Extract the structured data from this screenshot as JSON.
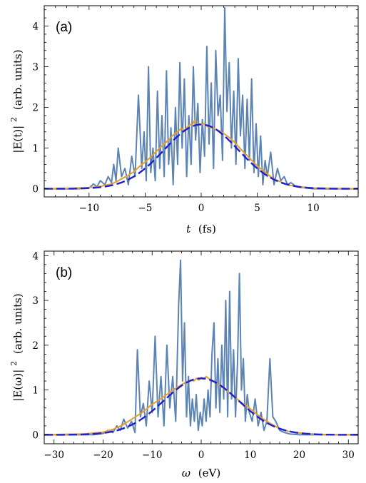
{
  "chart_data": [
    {
      "type": "line",
      "panel_label": "(a)",
      "xlabel": "t (fs)",
      "xlabel_var": "t",
      "xlabel_unit": "(fs)",
      "ylabel": "|E(t)|² (arb. units)",
      "ylabel_main": "|E(t)|",
      "ylabel_exp": "2",
      "ylabel_unit": "(arb. units)",
      "xlim": [
        -14,
        14
      ],
      "ylim": [
        -0.2,
        4.5
      ],
      "xticks": [
        -10,
        -5,
        0,
        5,
        10
      ],
      "xtick_labels": [
        "−10",
        "−5",
        "0",
        "5",
        "10"
      ],
      "yticks": [
        0,
        1,
        2,
        3,
        4
      ],
      "ytick_labels": [
        "0",
        "1",
        "2",
        "3",
        "4"
      ],
      "grid": false,
      "series": [
        {
          "color": "#5b84b5",
          "style": "solid",
          "x": [
            -14,
            -11,
            -10,
            -9.6,
            -9.3,
            -9,
            -8.6,
            -8.3,
            -8,
            -7.8,
            -7.6,
            -7.4,
            -7.1,
            -6.8,
            -6.5,
            -6.2,
            -5.9,
            -5.6,
            -5.3,
            -5.1,
            -4.9,
            -4.7,
            -4.5,
            -4.3,
            -4.1,
            -3.9,
            -3.7,
            -3.5,
            -3.3,
            -3.1,
            -2.9,
            -2.7,
            -2.5,
            -2.3,
            -2.1,
            -1.9,
            -1.7,
            -1.5,
            -1.3,
            -1.1,
            -0.9,
            -0.7,
            -0.5,
            -0.3,
            -0.1,
            0.1,
            0.3,
            0.5,
            0.7,
            0.9,
            1.1,
            1.3,
            1.5,
            1.7,
            1.9,
            2.1,
            2.3,
            2.5,
            2.7,
            2.9,
            3.1,
            3.3,
            3.5,
            3.7,
            3.9,
            4.1,
            4.3,
            4.5,
            4.7,
            4.9,
            5.1,
            5.3,
            5.5,
            5.7,
            5.9,
            6.2,
            6.5,
            6.8,
            7.1,
            7.4,
            7.7,
            8.0,
            8.5,
            9,
            10,
            14
          ],
          "y": [
            0,
            0,
            0.02,
            0.12,
            0.05,
            0.2,
            0.1,
            0.3,
            0.15,
            0.6,
            0.2,
            1.0,
            0.3,
            0.5,
            0.1,
            0.8,
            0.3,
            2.3,
            0.5,
            1.4,
            0.2,
            3.0,
            0.4,
            1.0,
            0.2,
            2.4,
            0.5,
            1.8,
            0.3,
            2.9,
            0.6,
            1.5,
            0.1,
            2.0,
            0.6,
            3.1,
            1.0,
            2.7,
            0.3,
            1.8,
            0.6,
            3.0,
            1.2,
            2.1,
            0.4,
            1.7,
            0.8,
            3.5,
            1.1,
            2.6,
            0.5,
            3.4,
            1.8,
            2.3,
            0.7,
            4.45,
            1.9,
            3.1,
            1.0,
            2.4,
            0.6,
            3.2,
            1.3,
            2.3,
            0.5,
            2.2,
            0.7,
            2.7,
            0.4,
            1.6,
            0.3,
            1.3,
            0.1,
            0.7,
            0.3,
            0.9,
            0.1,
            0.5,
            0.2,
            0.3,
            0.1,
            0.15,
            0.05,
            0.03,
            0,
            0
          ]
        },
        {
          "color": "#e69f2c",
          "style": "solid",
          "x": [
            -14,
            -12,
            -10,
            -9,
            -8,
            -7.5,
            -7,
            -6.5,
            -6,
            -5.5,
            -5,
            -4.5,
            -4,
            -3.5,
            -3,
            -2.5,
            -2,
            -1.8,
            -1.5,
            -1.2,
            -1,
            -0.8,
            -0.6,
            -0.4,
            -0.2,
            0,
            0.3,
            0.6,
            1,
            1.5,
            2,
            2.5,
            3,
            3.5,
            4,
            4.5,
            5,
            5.5,
            6,
            6.5,
            7,
            7.5,
            8,
            9,
            10,
            12,
            14
          ],
          "y": [
            0,
            0.01,
            0.03,
            0.06,
            0.12,
            0.18,
            0.26,
            0.33,
            0.42,
            0.55,
            0.66,
            0.78,
            0.92,
            1.05,
            1.18,
            1.32,
            1.42,
            1.48,
            1.44,
            1.52,
            1.58,
            1.56,
            1.68,
            1.55,
            1.6,
            1.58,
            1.6,
            1.52,
            1.5,
            1.44,
            1.36,
            1.26,
            1.14,
            0.98,
            0.84,
            0.7,
            0.56,
            0.45,
            0.34,
            0.24,
            0.18,
            0.12,
            0.08,
            0.04,
            0.02,
            0.01,
            0
          ]
        },
        {
          "color": "#1f1fd4",
          "style": "dashed",
          "gaussian": {
            "amplitude": 1.58,
            "center": 0,
            "sigma": 3.3
          }
        }
      ]
    },
    {
      "type": "line",
      "panel_label": "(b)",
      "xlabel": "ω (eV)",
      "xlabel_var": "ω",
      "xlabel_unit": "(eV)",
      "ylabel": "|E(ω)|² (arb. units)",
      "ylabel_main": "|E(ω)|",
      "ylabel_exp": "2",
      "ylabel_unit": "(arb. units)",
      "xlim": [
        -32,
        32
      ],
      "ylim": [
        -0.2,
        4.1
      ],
      "xticks": [
        -30,
        -20,
        -10,
        0,
        10,
        20,
        30
      ],
      "xtick_labels": [
        "−30",
        "−20",
        "−10",
        "0",
        "10",
        "20",
        "30"
      ],
      "yticks": [
        0,
        1,
        2,
        3,
        4
      ],
      "ytick_labels": [
        "0",
        "1",
        "2",
        "3",
        "4"
      ],
      "grid": false,
      "series": [
        {
          "color": "#5b84b5",
          "style": "solid",
          "x": [
            -32,
            -22,
            -20,
            -19,
            -18,
            -17.2,
            -16.5,
            -15.8,
            -15,
            -14.2,
            -13.5,
            -13,
            -12.4,
            -11.8,
            -11.2,
            -10.6,
            -10,
            -9.4,
            -8.8,
            -8.2,
            -7.6,
            -7,
            -6.4,
            -5.8,
            -5.2,
            -4.6,
            -4.2,
            -3.8,
            -3.4,
            -3,
            -2.6,
            -2.2,
            -1.8,
            -1.4,
            -1,
            -0.6,
            -0.2,
            0.2,
            0.6,
            1,
            1.4,
            1.8,
            2.2,
            2.6,
            3,
            3.4,
            3.8,
            4.2,
            4.6,
            5,
            5.4,
            5.8,
            6.2,
            6.6,
            7,
            7.4,
            7.8,
            8.2,
            8.6,
            9,
            9.4,
            9.8,
            10.4,
            11,
            11.6,
            12.2,
            12.8,
            13.4,
            14,
            14.6,
            15.2,
            16,
            17,
            18,
            20,
            32
          ],
          "y": [
            0,
            0,
            0.03,
            0.1,
            0.05,
            0.2,
            0.1,
            0.35,
            0.15,
            0.3,
            0.05,
            1.9,
            0.4,
            0.7,
            0.2,
            1.2,
            0.5,
            2.2,
            0.4,
            1.3,
            0.2,
            2.0,
            0.6,
            1.3,
            0.3,
            2.9,
            3.9,
            1.2,
            2.5,
            0.4,
            1.3,
            0.2,
            0.8,
            0.3,
            0.9,
            0.1,
            0.5,
            0.2,
            0.8,
            0.3,
            1.0,
            0.4,
            1.8,
            2.5,
            0.6,
            1.7,
            0.5,
            2.0,
            0.8,
            3.0,
            0.4,
            3.2,
            0.8,
            1.9,
            0.4,
            1.6,
            3.6,
            1.0,
            1.7,
            0.3,
            0.9,
            0.5,
            0.3,
            0.8,
            0.2,
            0.5,
            0.1,
            0.3,
            1.7,
            0.4,
            0.3,
            0.1,
            0.05,
            0.02,
            0,
            0
          ]
        },
        {
          "color": "#e69f2c",
          "style": "solid",
          "x": [
            -32,
            -28,
            -24,
            -20,
            -18,
            -16,
            -14,
            -12,
            -10,
            -8,
            -6,
            -4,
            -3,
            -2,
            -1.5,
            -1,
            -0.5,
            0,
            0.5,
            1,
            1.5,
            2,
            3,
            4,
            6,
            8,
            10,
            12,
            14,
            16,
            18,
            20,
            24,
            28,
            32
          ],
          "y": [
            0,
            0.01,
            0.02,
            0.06,
            0.12,
            0.22,
            0.36,
            0.5,
            0.68,
            0.82,
            0.98,
            1.12,
            1.18,
            1.22,
            1.2,
            1.26,
            1.22,
            1.28,
            1.24,
            1.3,
            1.26,
            1.22,
            1.16,
            1.08,
            0.92,
            0.74,
            0.58,
            0.4,
            0.26,
            0.14,
            0.07,
            0.04,
            0.01,
            0,
            0
          ]
        },
        {
          "color": "#1f1fd4",
          "style": "dashed",
          "gaussian": {
            "amplitude": 1.26,
            "center": 0,
            "sigma": 7.6
          }
        }
      ]
    }
  ]
}
